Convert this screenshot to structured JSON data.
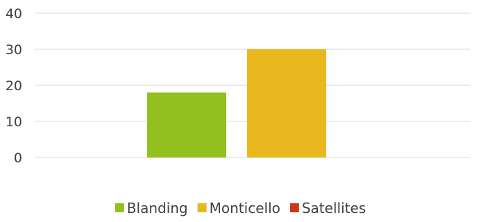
{
  "chart_data": {
    "type": "bar",
    "title": "",
    "xlabel": "",
    "ylabel": "",
    "categories": [
      ""
    ],
    "ylim": [
      0,
      40
    ],
    "yticks": [
      0,
      10,
      20,
      30,
      40
    ],
    "grid": true,
    "legend_position": "bottom",
    "series": [
      {
        "name": "Blanding",
        "values": [
          18
        ],
        "color": "#92c01f"
      },
      {
        "name": "Monticello",
        "values": [
          30
        ],
        "color": "#e8b81e"
      },
      {
        "name": "Satellites",
        "values": [
          0
        ],
        "color": "#d0361a"
      }
    ]
  }
}
